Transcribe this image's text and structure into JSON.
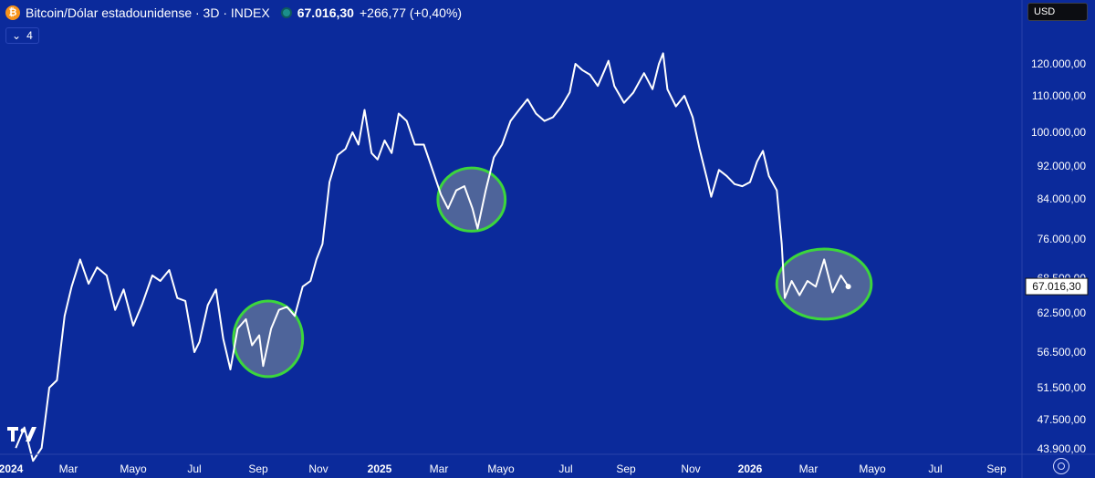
{
  "header": {
    "title": "Bitcoin/Dólar estadounidense · 3D · INDEX",
    "price": "67.016,30",
    "change": "+266,77 (+0,40%)",
    "btc_glyph": "₿"
  },
  "indicator": {
    "icon": "chevron-down-icon",
    "label": "4"
  },
  "currency": "USD",
  "logo": {
    "icon": "tradingview-logo"
  },
  "colors": {
    "background": "#0b2a9b",
    "line": "#ffffff",
    "highlight_stroke": "#3cd63c",
    "highlight_fill": "#5a6f9a",
    "axis_bg": "#0b2a9b"
  },
  "chart_data": {
    "type": "line",
    "x_ticks": [
      {
        "label": "2024",
        "date": "2024-01-01"
      },
      {
        "label": "Mar",
        "date": "2024-03-01"
      },
      {
        "label": "Mayo",
        "date": "2024-05-01"
      },
      {
        "label": "Jul",
        "date": "2024-07-01"
      },
      {
        "label": "Sep",
        "date": "2024-09-01"
      },
      {
        "label": "Nov",
        "date": "2024-11-01"
      },
      {
        "label": "2025",
        "date": "2025-01-01"
      },
      {
        "label": "Mar",
        "date": "2025-03-01"
      },
      {
        "label": "Mayo",
        "date": "2025-05-01"
      },
      {
        "label": "Jul",
        "date": "2025-07-01"
      },
      {
        "label": "Sep",
        "date": "2025-09-01"
      },
      {
        "label": "Nov",
        "date": "2025-11-01"
      },
      {
        "label": "2026",
        "date": "2026-01-01"
      },
      {
        "label": "Mar",
        "date": "2026-03-01"
      },
      {
        "label": "Mayo",
        "date": "2026-05-01"
      },
      {
        "label": "Jul",
        "date": "2026-07-01"
      },
      {
        "label": "Sep",
        "date": "2026-09-01"
      }
    ],
    "y_ticks": [
      {
        "label": "120.000,00",
        "value": 120000
      },
      {
        "label": "110.000,00",
        "value": 110000
      },
      {
        "label": "100.000,00",
        "value": 100000
      },
      {
        "label": "92.000,00",
        "value": 92000
      },
      {
        "label": "84.000,00",
        "value": 84000
      },
      {
        "label": "76.000,00",
        "value": 76000
      },
      {
        "label": "68.500,00",
        "value": 68500
      },
      {
        "label": "62.500,00",
        "value": 62500
      },
      {
        "label": "56.500,00",
        "value": 56500
      },
      {
        "label": "51.500,00",
        "value": 51500
      },
      {
        "label": "47.500,00",
        "value": 47500
      },
      {
        "label": "43.900,00",
        "value": 43900
      }
    ],
    "ylim": [
      43900,
      125000
    ],
    "y_scale": "log",
    "xlim": [
      "2024-01-01",
      "2026-10-01"
    ],
    "last_price": {
      "label": "67.016,30",
      "value": 67016.3
    },
    "series": [
      {
        "x": [
          "2024-01-06",
          "2024-01-15",
          "2024-01-24",
          "2024-02-02",
          "2024-02-10",
          "2024-02-18",
          "2024-02-26",
          "2024-03-04",
          "2024-03-12",
          "2024-03-20",
          "2024-03-28",
          "2024-04-06",
          "2024-04-14",
          "2024-04-22",
          "2024-05-01",
          "2024-05-10",
          "2024-05-20",
          "2024-05-28",
          "2024-06-06",
          "2024-06-14",
          "2024-06-22",
          "2024-07-01",
          "2024-07-06",
          "2024-07-14",
          "2024-07-22",
          "2024-07-29",
          "2024-08-05",
          "2024-08-12",
          "2024-08-20",
          "2024-08-26",
          "2024-09-02",
          "2024-09-06",
          "2024-09-14",
          "2024-09-22",
          "2024-09-30",
          "2024-10-08",
          "2024-10-16",
          "2024-10-24",
          "2024-10-30",
          "2024-11-05",
          "2024-11-12",
          "2024-11-20",
          "2024-11-28",
          "2024-12-05",
          "2024-12-11",
          "2024-12-17",
          "2024-12-24",
          "2024-12-30",
          "2025-01-06",
          "2025-01-13",
          "2025-01-20",
          "2025-01-28",
          "2025-02-05",
          "2025-02-14",
          "2025-02-24",
          "2025-03-03",
          "2025-03-10",
          "2025-03-18",
          "2025-03-26",
          "2025-04-03",
          "2025-04-08",
          "2025-04-16",
          "2025-04-24",
          "2025-05-02",
          "2025-05-10",
          "2025-05-18",
          "2025-05-26",
          "2025-06-03",
          "2025-06-11",
          "2025-06-19",
          "2025-06-27",
          "2025-07-05",
          "2025-07-11",
          "2025-07-18",
          "2025-07-26",
          "2025-08-03",
          "2025-08-10",
          "2025-08-14",
          "2025-08-20",
          "2025-08-30",
          "2025-09-08",
          "2025-09-18",
          "2025-09-26",
          "2025-10-02",
          "2025-10-06",
          "2025-10-10",
          "2025-10-18",
          "2025-10-26",
          "2025-11-03",
          "2025-11-10",
          "2025-11-18",
          "2025-11-22",
          "2025-11-30",
          "2025-12-08",
          "2025-12-16",
          "2025-12-24",
          "2026-01-01",
          "2026-01-08",
          "2026-01-14",
          "2026-01-20",
          "2026-01-28",
          "2026-02-02",
          "2026-02-05",
          "2026-02-12",
          "2026-02-20",
          "2026-02-28",
          "2026-03-08",
          "2026-03-16",
          "2026-03-24",
          "2026-04-01",
          "2026-04-08"
        ],
        "y": [
          44000,
          46500,
          42500,
          44000,
          51500,
          52500,
          62000,
          67000,
          72000,
          67500,
          70500,
          69000,
          63000,
          66500,
          60500,
          64000,
          69000,
          68000,
          70000,
          65000,
          64500,
          56500,
          58000,
          63800,
          66500,
          58500,
          54000,
          60000,
          61500,
          57500,
          59000,
          54500,
          60000,
          63000,
          63500,
          62000,
          67000,
          68000,
          72000,
          75000,
          88000,
          94500,
          96000,
          100000,
          97000,
          106000,
          95000,
          93500,
          98000,
          95000,
          105000,
          103000,
          97000,
          97000,
          90000,
          85000,
          82000,
          86000,
          87000,
          82000,
          78000,
          86000,
          94000,
          97000,
          103000,
          106000,
          109000,
          105000,
          103000,
          104000,
          107000,
          111000,
          120000,
          118000,
          116500,
          113000,
          118000,
          121000,
          113000,
          108000,
          111000,
          117000,
          112000,
          120000,
          123500,
          112000,
          107000,
          110000,
          104000,
          96000,
          88500,
          84500,
          91000,
          89500,
          87500,
          87000,
          88000,
          93000,
          95500,
          89500,
          86000,
          75000,
          65000,
          68000,
          65500,
          68000,
          67000,
          72000,
          66000,
          69000,
          67016.3
        ]
      }
    ],
    "highlights": [
      {
        "shape": "ellipse",
        "x_range": [
          "2024-08-08",
          "2024-10-16"
        ],
        "y_range": [
          53000,
          64500
        ]
      },
      {
        "shape": "ellipse",
        "x_range": [
          "2025-02-28",
          "2025-05-05"
        ],
        "y_range": [
          77500,
          91500
        ]
      },
      {
        "shape": "ellipse",
        "x_range": [
          "2026-01-28",
          "2026-04-30"
        ],
        "y_range": [
          61500,
          74000
        ]
      }
    ]
  }
}
